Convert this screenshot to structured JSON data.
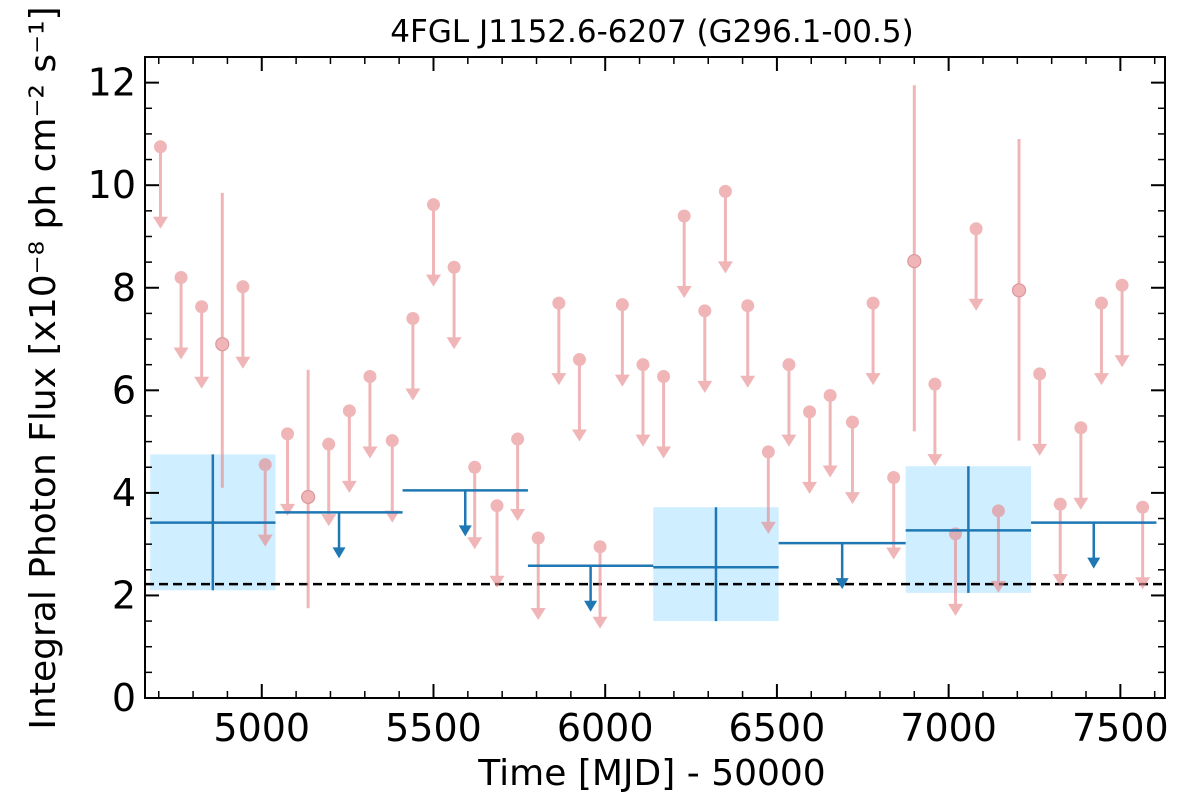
{
  "chart_data": {
    "type": "scatter",
    "title": "4FGL J1152.6-6207 (G296.1-00.5)",
    "xlabel": "Time [MJD] - 50000",
    "ylabel": "Integral Photon Flux [x10⁻⁸ ph cm⁻² s⁻¹]",
    "xlim": [
      4660,
      7630
    ],
    "ylim": [
      0,
      12.5
    ],
    "x_ticks": [
      5000,
      5500,
      6000,
      6500,
      7000,
      7500
    ],
    "x_tick_labels": [
      "5000",
      "5500",
      "6000",
      "6500",
      "7000",
      "7500"
    ],
    "y_ticks": [
      0,
      2,
      4,
      6,
      8,
      10,
      12
    ],
    "y_tick_labels": [
      "0",
      "2",
      "4",
      "6",
      "8",
      "10",
      "12"
    ],
    "grid": false,
    "colors": {
      "short_bins": "#e8888c",
      "long_bins": "#1f77b4",
      "error_band": "#cfeeff",
      "reference_line": "#000000"
    },
    "reference_line": {
      "y": 2.22,
      "style": "dashed"
    },
    "series": [
      {
        "points": [
          {
            "x": 4705,
            "y": 10.75,
            "ul": true
          },
          {
            "x": 4765,
            "y": 8.2,
            "ul": true
          },
          {
            "x": 4825,
            "y": 7.63,
            "ul": true
          },
          {
            "x": 4885,
            "y": 6.9,
            "lo": 4.1,
            "hi": 9.85
          },
          {
            "x": 4945,
            "y": 8.02,
            "ul": true
          },
          {
            "x": 5010,
            "y": 4.55,
            "ul": true
          },
          {
            "x": 5075,
            "y": 5.15,
            "ul": true
          },
          {
            "x": 5135,
            "y": 3.92,
            "lo": 1.75,
            "hi": 6.4
          },
          {
            "x": 5195,
            "y": 4.95,
            "ul": true
          },
          {
            "x": 5255,
            "y": 5.6,
            "ul": true
          },
          {
            "x": 5315,
            "y": 6.27,
            "ul": true
          },
          {
            "x": 5380,
            "y": 5.02,
            "ul": true
          },
          {
            "x": 5440,
            "y": 7.4,
            "ul": true
          },
          {
            "x": 5500,
            "y": 9.62,
            "ul": true
          },
          {
            "x": 5560,
            "y": 8.4,
            "ul": true
          },
          {
            "x": 5620,
            "y": 4.5,
            "ul": true
          },
          {
            "x": 5685,
            "y": 3.75,
            "ul": true
          },
          {
            "x": 5745,
            "y": 5.05,
            "ul": true
          },
          {
            "x": 5805,
            "y": 3.12,
            "ul": true
          },
          {
            "x": 5865,
            "y": 7.7,
            "ul": true
          },
          {
            "x": 5925,
            "y": 6.6,
            "ul": true
          },
          {
            "x": 5985,
            "y": 2.95,
            "ul": true
          },
          {
            "x": 6050,
            "y": 7.67,
            "ul": true
          },
          {
            "x": 6110,
            "y": 6.5,
            "ul": true
          },
          {
            "x": 6170,
            "y": 6.27,
            "ul": true
          },
          {
            "x": 6230,
            "y": 9.4,
            "ul": true
          },
          {
            "x": 6290,
            "y": 7.55,
            "ul": true
          },
          {
            "x": 6350,
            "y": 9.88,
            "ul": true
          },
          {
            "x": 6415,
            "y": 7.65,
            "ul": true
          },
          {
            "x": 6475,
            "y": 4.8,
            "ul": true
          },
          {
            "x": 6535,
            "y": 6.5,
            "ul": true
          },
          {
            "x": 6595,
            "y": 5.58,
            "ul": true
          },
          {
            "x": 6655,
            "y": 5.9,
            "ul": true
          },
          {
            "x": 6720,
            "y": 5.38,
            "ul": true
          },
          {
            "x": 6780,
            "y": 7.7,
            "ul": true
          },
          {
            "x": 6840,
            "y": 4.3,
            "ul": true
          },
          {
            "x": 6900,
            "y": 8.52,
            "lo": 5.2,
            "hi": 11.95
          },
          {
            "x": 6960,
            "y": 6.12,
            "ul": true
          },
          {
            "x": 7020,
            "y": 3.2,
            "ul": true
          },
          {
            "x": 7080,
            "y": 9.15,
            "ul": true
          },
          {
            "x": 7145,
            "y": 3.65,
            "ul": true
          },
          {
            "x": 7205,
            "y": 7.95,
            "lo": 5.02,
            "hi": 10.9
          },
          {
            "x": 7265,
            "y": 6.32,
            "ul": true
          },
          {
            "x": 7325,
            "y": 3.78,
            "ul": true
          },
          {
            "x": 7385,
            "y": 5.27,
            "ul": true
          },
          {
            "x": 7445,
            "y": 7.7,
            "ul": true
          },
          {
            "x": 7505,
            "y": 8.05,
            "ul": true
          },
          {
            "x": 7565,
            "y": 3.72,
            "ul": true
          }
        ]
      },
      {
        "bins": [
          {
            "x0": 4675,
            "x1": 5040,
            "y": 3.42,
            "lo": 2.1,
            "hi": 4.75,
            "band": true
          },
          {
            "x0": 5040,
            "x1": 5410,
            "y": 3.62,
            "ul": true
          },
          {
            "x0": 5410,
            "x1": 5775,
            "y": 4.05,
            "ul": true
          },
          {
            "x0": 5775,
            "x1": 6140,
            "y": 2.58,
            "ul": true
          },
          {
            "x0": 6140,
            "x1": 6505,
            "y": 2.55,
            "lo": 1.5,
            "hi": 3.72,
            "band": true
          },
          {
            "x0": 6505,
            "x1": 6875,
            "y": 3.02,
            "ul": true
          },
          {
            "x0": 6875,
            "x1": 7240,
            "y": 3.27,
            "lo": 2.05,
            "hi": 4.52,
            "band": true
          },
          {
            "x0": 7240,
            "x1": 7605,
            "y": 3.42,
            "ul": true
          }
        ]
      }
    ]
  }
}
